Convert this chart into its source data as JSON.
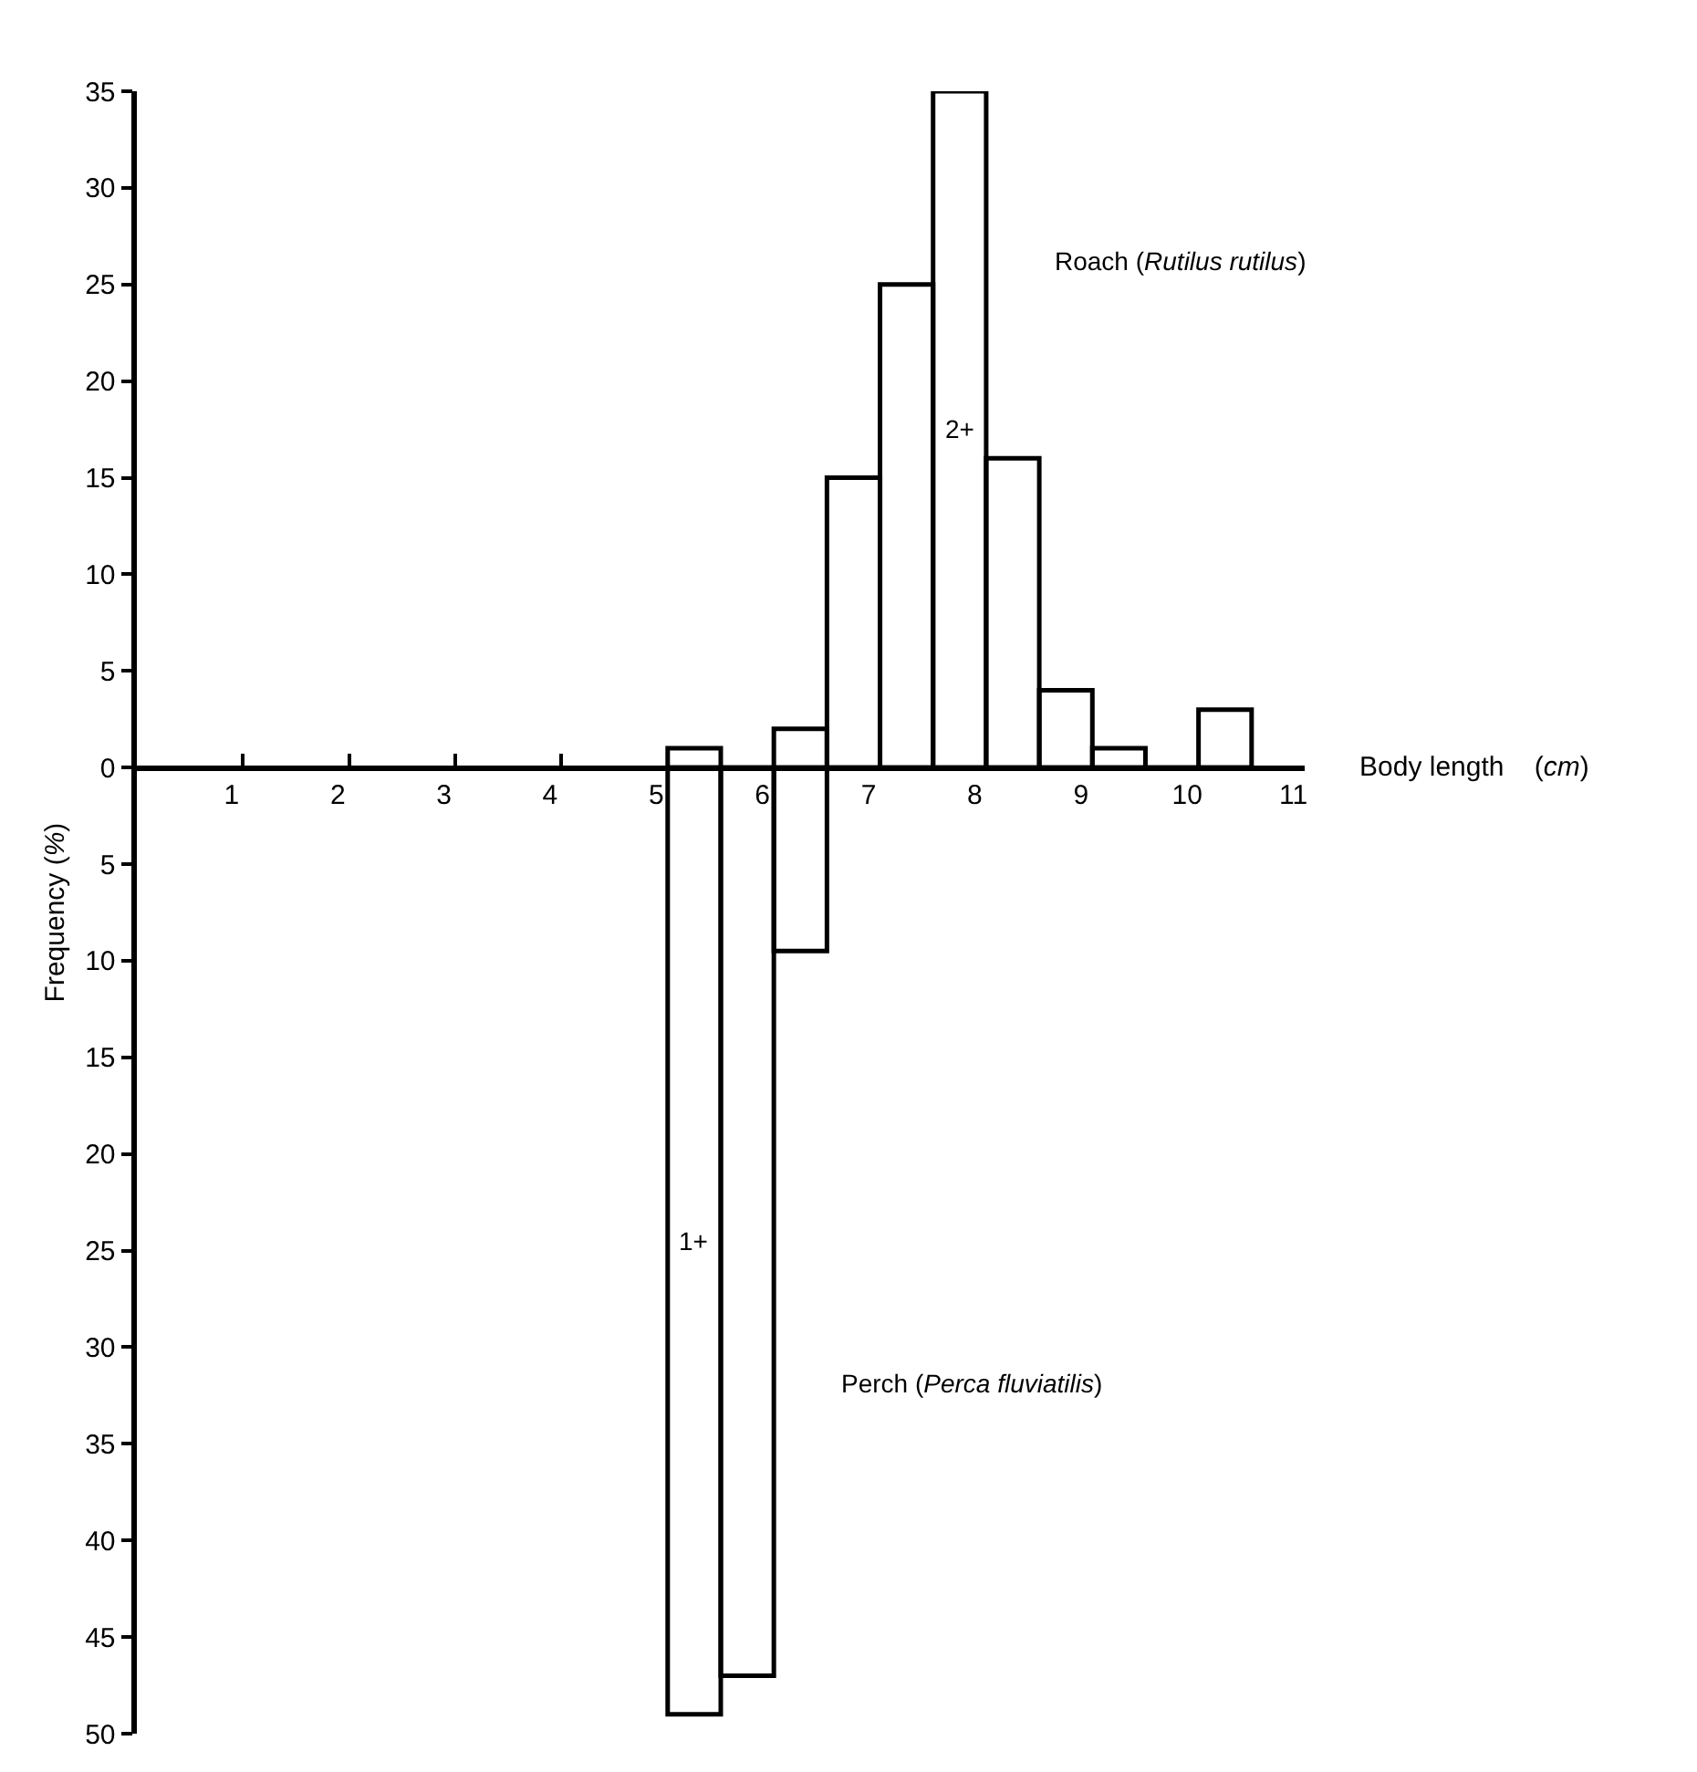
{
  "chart_data": {
    "type": "histogram",
    "xlabel": "Body length    (cm)",
    "ylabel": "Frequency (%)",
    "bins": [
      5,
      5.5,
      6,
      6.5,
      7,
      7.5,
      8,
      8.5,
      9,
      9.5,
      10,
      10.5
    ],
    "series": [
      {
        "name": "Roach (Rutilus rutilus)",
        "color": "#000000",
        "values": [
          1,
          0,
          2,
          15,
          25,
          35,
          16,
          4,
          1,
          0,
          3
        ]
      },
      {
        "name": "Perch (Perca fluviatilis)",
        "color": "#000000",
        "values": [
          -49,
          -47,
          -9.5,
          0,
          0,
          0,
          0,
          0,
          0,
          0,
          0
        ]
      }
    ],
    "annotations": [
      "2+",
      "1+"
    ],
    "xlim": [
      0,
      11
    ],
    "xticks": [
      1,
      2,
      3,
      4,
      5,
      6,
      7,
      8,
      9,
      10,
      11
    ],
    "ylim": [
      -50,
      35
    ],
    "yticks": [
      {
        "value": -50,
        "label": "50"
      },
      {
        "value": -45,
        "label": "45"
      },
      {
        "value": -40,
        "label": "40"
      },
      {
        "value": -35,
        "label": "35"
      },
      {
        "value": -30,
        "label": "30"
      },
      {
        "value": -25,
        "label": "25"
      },
      {
        "value": -20,
        "label": "20"
      },
      {
        "value": -15,
        "label": "15"
      },
      {
        "value": -10,
        "label": "10"
      },
      {
        "value": -5,
        "label": "5"
      },
      0,
      5,
      10,
      15,
      20,
      25,
      30,
      35
    ],
    "marker": "none"
  }
}
